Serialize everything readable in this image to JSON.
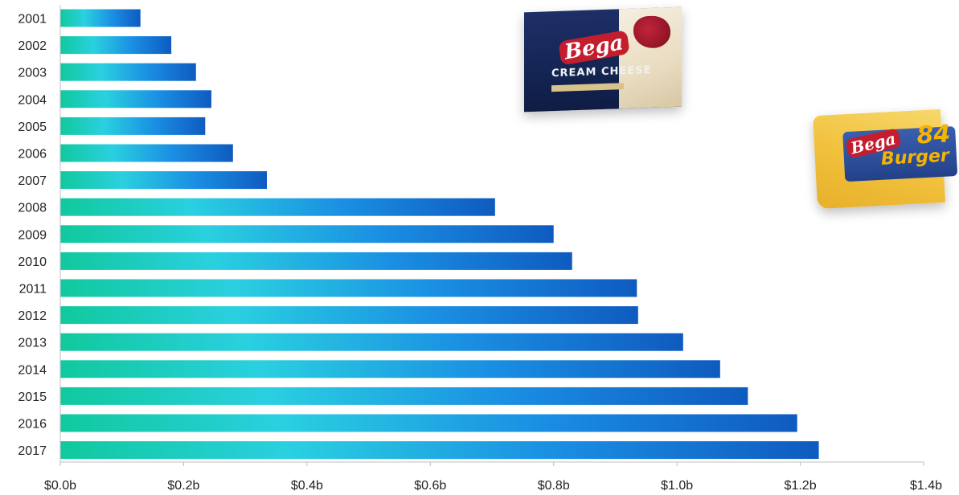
{
  "chart_data": {
    "type": "bar",
    "orientation": "horizontal",
    "categories": [
      "2001",
      "2002",
      "2003",
      "2004",
      "2005",
      "2006",
      "2007",
      "2008",
      "2009",
      "2010",
      "2011",
      "2012",
      "2013",
      "2014",
      "2015",
      "2016",
      "2017"
    ],
    "values": [
      0.13,
      0.18,
      0.22,
      0.245,
      0.235,
      0.28,
      0.335,
      0.705,
      0.8,
      0.83,
      0.935,
      0.937,
      1.01,
      1.07,
      1.115,
      1.195,
      1.23
    ],
    "xlim": [
      0,
      1.4
    ],
    "xticks": [
      0,
      0.2,
      0.4,
      0.6,
      0.8,
      1.0,
      1.2,
      1.4
    ],
    "xtick_labels": [
      "$0.0b",
      "$0.2b",
      "$0.4b",
      "$0.6b",
      "$0.8b",
      "$1.0b",
      "$1.2b",
      "$1.4b"
    ],
    "grid": false,
    "legend": "none",
    "bar_gradient": [
      "#10c99d",
      "#2ad0e0",
      "#1a8fe3",
      "#0f5bc0"
    ]
  },
  "images": {
    "cream_cheese": {
      "logo": "Bega",
      "name": "CREAM CHEESE"
    },
    "burger_slices": {
      "logo": "Bega",
      "number": "84",
      "name": "Burger"
    }
  }
}
